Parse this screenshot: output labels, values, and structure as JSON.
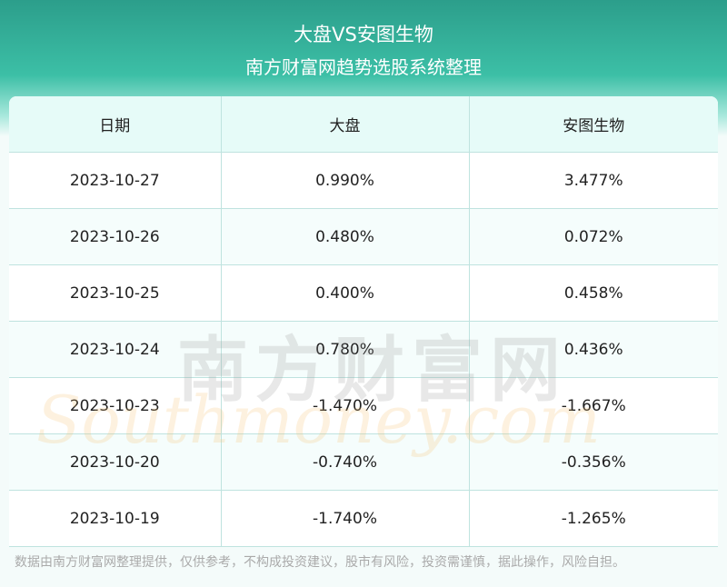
{
  "header": {
    "title": "大盘VS安图生物",
    "subtitle": "南方财富网趋势选股系统整理"
  },
  "table": {
    "columns": [
      "日期",
      "大盘",
      "安图生物"
    ],
    "rows": [
      [
        "2023-10-27",
        "0.990%",
        "3.477%"
      ],
      [
        "2023-10-26",
        "0.480%",
        "0.072%"
      ],
      [
        "2023-10-25",
        "0.400%",
        "0.458%"
      ],
      [
        "2023-10-24",
        "0.780%",
        "0.436%"
      ],
      [
        "2023-10-23",
        "-1.470%",
        "-1.667%"
      ],
      [
        "2023-10-20",
        "-0.740%",
        "-0.356%"
      ],
      [
        "2023-10-19",
        "-1.740%",
        "-1.265%"
      ]
    ]
  },
  "watermark": {
    "cn": "南方财富网",
    "en": "Southmoney.com"
  },
  "footer": {
    "note": "数据由南方财富网整理提供，仅供参考，不构成投资建议，股市有风险，投资需谨慎，据此操作，风险自担。"
  }
}
